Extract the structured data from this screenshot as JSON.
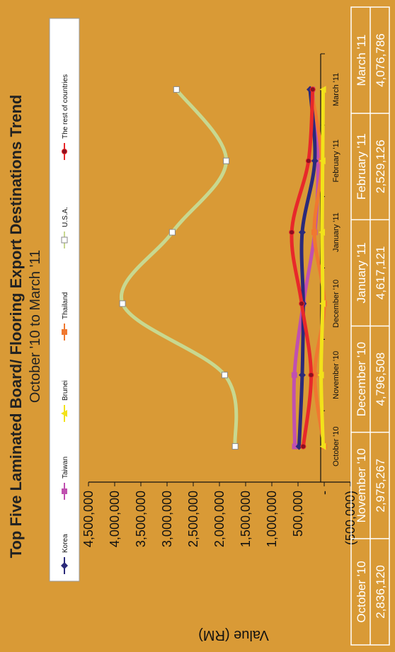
{
  "chart_data": {
    "type": "line",
    "title": "Top Five Laminated Board/ Flooring Export Destinations Trend",
    "subtitle": "October '10 to March '11",
    "ylabel": "Value (RM)",
    "xlabel": "",
    "categories": [
      "October '10",
      "November '10",
      "December '10",
      "January '11",
      "February '11",
      "March '11"
    ],
    "ylim": [
      -500000,
      4500000
    ],
    "yticks": [
      "4,500,000",
      "4,000,000",
      "3,500,000",
      "3,000,000",
      "2,500,000",
      "2,000,000",
      "1,500,000",
      "1,000,000",
      "500,000",
      "-",
      "(500,000)"
    ],
    "legend_position": "top",
    "series": [
      {
        "name": "Korea",
        "color": "#2b2a7a",
        "marker": "diamond",
        "values": [
          480000,
          420000,
          400000,
          420000,
          180000,
          270000
        ]
      },
      {
        "name": "Taiwan",
        "color": "#c050b0",
        "marker": "square",
        "values": [
          560000,
          570000,
          400000,
          180000,
          120000,
          230000
        ]
      },
      {
        "name": "Brunei",
        "color": "#f2e21a",
        "marker": "triangle",
        "values": [
          20000,
          60000,
          30000,
          40000,
          30000,
          20000
        ]
      },
      {
        "name": "Thailand",
        "color": "#f07830",
        "marker": "square",
        "values": [
          0,
          180000,
          0,
          190000,
          50000,
          250000
        ]
      },
      {
        "name": "U.S.A.",
        "color": "#c8d890",
        "marker": "open-square",
        "values": [
          1700000,
          1900000,
          3850000,
          2900000,
          1870000,
          2820000
        ]
      },
      {
        "name": "The rest of countries",
        "color": "#e8282a",
        "marker": "circle",
        "values": [
          400000,
          250000,
          430000,
          620000,
          300000,
          220000
        ]
      }
    ]
  },
  "table": {
    "headers": [
      "October '10",
      "November '10",
      "December '10",
      "January '11",
      "February '11",
      "March '11"
    ],
    "values": [
      "2,836,120",
      "2,975,267",
      "4,796,508",
      "4,617,121",
      "2,529,126",
      "4,076,786"
    ]
  }
}
